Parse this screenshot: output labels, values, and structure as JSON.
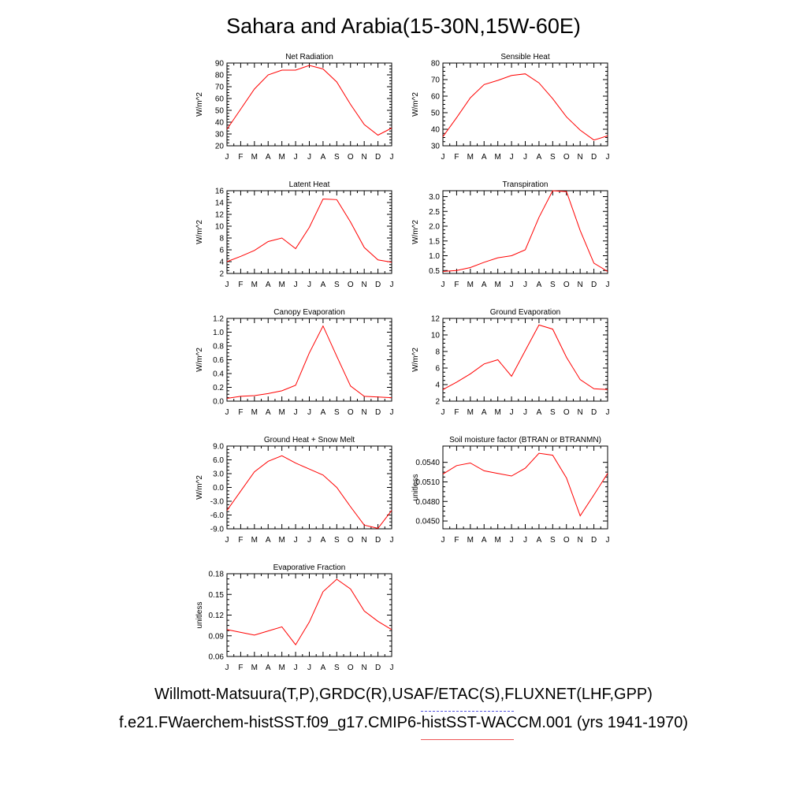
{
  "page": {
    "title": "Sahara and Arabia(15-30N,15W-60E)",
    "footer_obs": "Willmott-Matsuura(T,P),GRDC(R),USAF/ETAC(S),FLUXNET(LHF,GPP)",
    "footer_model": "f.e21.FWaerchem-histSST.f09_g17.CMIP6-histSST-WACCM.001 (yrs 1941-1970)",
    "obs_line_color": "#5555dd",
    "model_line_color": "#ee5555"
  },
  "chart_data": [
    {
      "id": "net-radiation",
      "type": "line",
      "title": "Net Radiation",
      "ylabel": "W/m^2",
      "categories": [
        "J",
        "F",
        "M",
        "A",
        "M",
        "J",
        "J",
        "A",
        "S",
        "O",
        "N",
        "D",
        "J"
      ],
      "ylim": [
        20,
        90
      ],
      "yticks": [
        20,
        30,
        40,
        50,
        60,
        70,
        80,
        90
      ],
      "yticklabels": [
        "20",
        "30",
        "40",
        "50",
        "60",
        "70",
        "80",
        "90"
      ],
      "series": [
        {
          "color": "#ff0000",
          "values": [
            34,
            51,
            68,
            80,
            84,
            84,
            88,
            85,
            74,
            55,
            38,
            29,
            35
          ]
        }
      ]
    },
    {
      "id": "sensible-heat",
      "type": "line",
      "title": "Sensible Heat",
      "ylabel": "W/m^2",
      "categories": [
        "J",
        "F",
        "M",
        "A",
        "M",
        "J",
        "J",
        "A",
        "S",
        "O",
        "N",
        "D",
        "J"
      ],
      "ylim": [
        30,
        80
      ],
      "yticks": [
        30,
        40,
        50,
        60,
        70,
        80
      ],
      "yticklabels": [
        "30",
        "40",
        "50",
        "60",
        "70",
        "80"
      ],
      "series": [
        {
          "color": "#ff0000",
          "values": [
            35.5,
            47,
            59,
            67,
            69.5,
            72.5,
            73.5,
            68,
            58.5,
            47.5,
            39.5,
            33.5,
            36
          ]
        }
      ]
    },
    {
      "id": "latent-heat",
      "type": "line",
      "title": "Latent Heat",
      "ylabel": "W/m^2",
      "categories": [
        "J",
        "F",
        "M",
        "A",
        "M",
        "J",
        "J",
        "A",
        "S",
        "O",
        "N",
        "D",
        "J"
      ],
      "ylim": [
        2,
        16
      ],
      "yticks": [
        2,
        4,
        6,
        8,
        10,
        12,
        14,
        16
      ],
      "yticklabels": [
        "2",
        "4",
        "6",
        "8",
        "10",
        "12",
        "14",
        "16"
      ],
      "series": [
        {
          "color": "#ff0000",
          "values": [
            4.0,
            4.9,
            5.9,
            7.4,
            8.0,
            6.2,
            9.8,
            14.6,
            14.5,
            10.7,
            6.4,
            4.3,
            3.9
          ]
        }
      ]
    },
    {
      "id": "transpiration",
      "type": "line",
      "title": "Transpiration",
      "ylabel": "W/m^2",
      "categories": [
        "J",
        "F",
        "M",
        "A",
        "M",
        "J",
        "J",
        "A",
        "S",
        "O",
        "N",
        "D",
        "J"
      ],
      "ylim": [
        0.4,
        3.2
      ],
      "yticks": [
        0.5,
        1.0,
        1.5,
        2.0,
        2.5,
        3.0
      ],
      "yticklabels": [
        "0.5",
        "1.0",
        "1.5",
        "2.0",
        "2.5",
        "3.0"
      ],
      "series": [
        {
          "color": "#ff0000",
          "values": [
            0.47,
            0.5,
            0.6,
            0.78,
            0.93,
            1.0,
            1.2,
            2.3,
            3.2,
            3.17,
            1.85,
            0.75,
            0.47
          ]
        }
      ]
    },
    {
      "id": "canopy-evaporation",
      "type": "line",
      "title": "Canopy Evaporation",
      "ylabel": "W/m^2",
      "categories": [
        "J",
        "F",
        "M",
        "A",
        "M",
        "J",
        "J",
        "A",
        "S",
        "O",
        "N",
        "D",
        "J"
      ],
      "ylim": [
        0.0,
        1.2
      ],
      "yticks": [
        0.0,
        0.2,
        0.4,
        0.6,
        0.8,
        1.0,
        1.2
      ],
      "yticklabels": [
        "0.0",
        "0.2",
        "0.4",
        "0.6",
        "0.8",
        "1.0",
        "1.2"
      ],
      "series": [
        {
          "color": "#ff0000",
          "values": [
            0.04,
            0.07,
            0.08,
            0.11,
            0.15,
            0.23,
            0.7,
            1.09,
            0.65,
            0.22,
            0.07,
            0.06,
            0.05
          ]
        }
      ]
    },
    {
      "id": "ground-evaporation",
      "type": "line",
      "title": "Ground Evaporation",
      "ylabel": "W/m^2",
      "categories": [
        "J",
        "F",
        "M",
        "A",
        "M",
        "J",
        "J",
        "A",
        "S",
        "O",
        "N",
        "D",
        "J"
      ],
      "ylim": [
        2,
        12
      ],
      "yticks": [
        2,
        4,
        6,
        8,
        10,
        12
      ],
      "yticklabels": [
        "2",
        "4",
        "6",
        "8",
        "10",
        "12"
      ],
      "series": [
        {
          "color": "#ff0000",
          "values": [
            3.4,
            4.3,
            5.3,
            6.5,
            7.0,
            5.0,
            8.1,
            11.2,
            10.7,
            7.3,
            4.6,
            3.5,
            3.4
          ]
        }
      ]
    },
    {
      "id": "ground-heat-snow-melt",
      "type": "line",
      "title": "Ground Heat + Snow Melt",
      "ylabel": "W/m^2",
      "categories": [
        "J",
        "F",
        "M",
        "A",
        "M",
        "J",
        "J",
        "A",
        "S",
        "O",
        "N",
        "D",
        "J"
      ],
      "ylim": [
        -9.0,
        9.0
      ],
      "yticks": [
        -9,
        -6,
        -3,
        0,
        3,
        6,
        9
      ],
      "yticklabels": [
        "-9.0",
        "-6.0",
        "-3.0",
        "0.0",
        "3.0",
        "6.0",
        "9.0"
      ],
      "series": [
        {
          "color": "#ff0000",
          "values": [
            -5.0,
            -0.8,
            3.4,
            5.7,
            6.9,
            5.3,
            4.0,
            2.7,
            0.0,
            -4.2,
            -8.2,
            -8.9,
            -5.0
          ]
        }
      ]
    },
    {
      "id": "soil-moisture-factor",
      "type": "line",
      "title": "Soil moisture factor (BTRAN or BTRANMN)",
      "ylabel": "unitless",
      "categories": [
        "J",
        "F",
        "M",
        "A",
        "M",
        "J",
        "J",
        "A",
        "S",
        "O",
        "N",
        "D",
        "J"
      ],
      "ylim": [
        0.0438,
        0.0565
      ],
      "yticks": [
        0.045,
        0.048,
        0.051,
        0.054
      ],
      "yticklabels": [
        "0.0450",
        "0.0480",
        "0.0510",
        "0.0540"
      ],
      "series": [
        {
          "color": "#ff0000",
          "values": [
            0.0522,
            0.0535,
            0.0539,
            0.0527,
            0.0523,
            0.0519,
            0.0531,
            0.0554,
            0.0551,
            0.0516,
            0.0458,
            0.049,
            0.0523
          ]
        }
      ]
    },
    {
      "id": "evaporative-fraction",
      "type": "line",
      "title": "Evaporative Fraction",
      "ylabel": "unitless",
      "categories": [
        "J",
        "F",
        "M",
        "A",
        "M",
        "J",
        "J",
        "A",
        "S",
        "O",
        "N",
        "D",
        "J"
      ],
      "ylim": [
        0.06,
        0.18
      ],
      "yticks": [
        0.06,
        0.09,
        0.12,
        0.15,
        0.18
      ],
      "yticklabels": [
        "0.06",
        "0.09",
        "0.12",
        "0.15",
        "0.18"
      ],
      "series": [
        {
          "color": "#ff0000",
          "values": [
            0.099,
            0.095,
            0.091,
            0.097,
            0.103,
            0.077,
            0.11,
            0.154,
            0.172,
            0.158,
            0.126,
            0.111,
            0.099
          ]
        }
      ]
    }
  ]
}
